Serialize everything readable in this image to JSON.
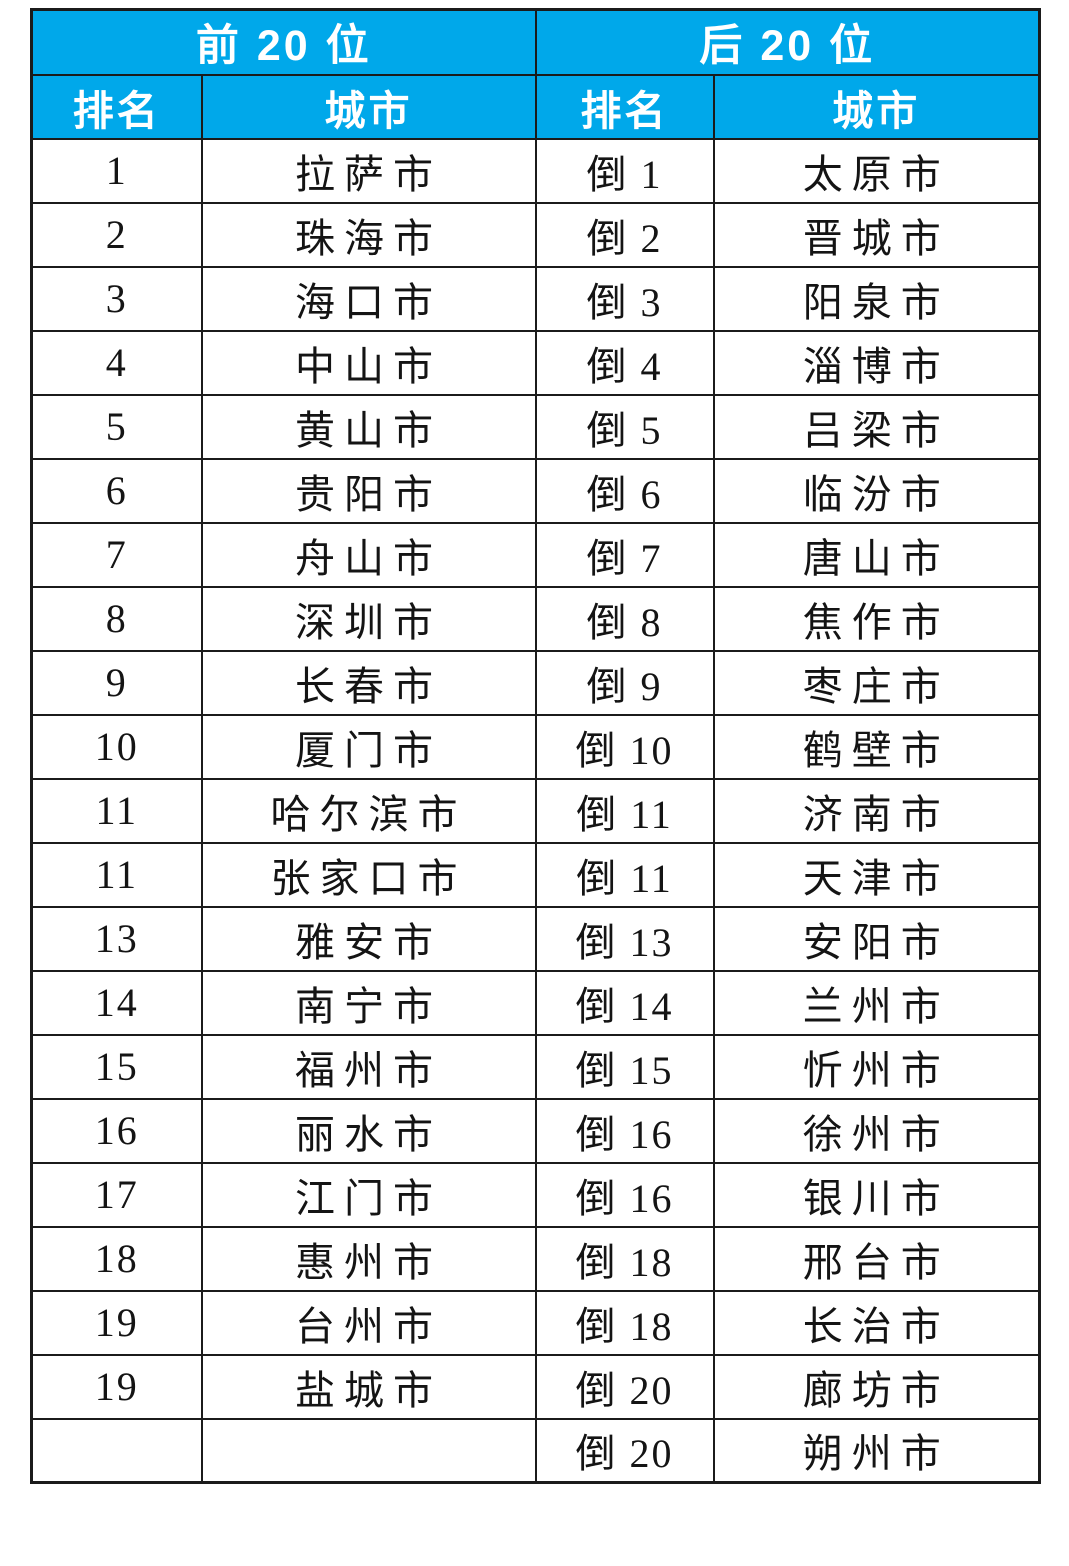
{
  "colors": {
    "header_bg": "#00A8EA",
    "header_text": "#FFFFFF",
    "body_text": "#141414",
    "border": "#1B1B1B",
    "page_bg": "#FFFFFF"
  },
  "chart_data": {
    "type": "table",
    "title": "",
    "column_groups": [
      "前 20 位",
      "后 20 位"
    ],
    "columns": [
      "排名",
      "城市",
      "排名",
      "城市"
    ],
    "rows": [
      [
        "1",
        "拉萨市",
        "倒 1",
        "太原市"
      ],
      [
        "2",
        "珠海市",
        "倒 2",
        "晋城市"
      ],
      [
        "3",
        "海口市",
        "倒 3",
        "阳泉市"
      ],
      [
        "4",
        "中山市",
        "倒 4",
        "淄博市"
      ],
      [
        "5",
        "黄山市",
        "倒 5",
        "吕梁市"
      ],
      [
        "6",
        "贵阳市",
        "倒 6",
        "临汾市"
      ],
      [
        "7",
        "舟山市",
        "倒 7",
        "唐山市"
      ],
      [
        "8",
        "深圳市",
        "倒 8",
        "焦作市"
      ],
      [
        "9",
        "长春市",
        "倒 9",
        "枣庄市"
      ],
      [
        "10",
        "厦门市",
        "倒 10",
        "鹤壁市"
      ],
      [
        "11",
        "哈尔滨市",
        "倒 11",
        "济南市"
      ],
      [
        "11",
        "张家口市",
        "倒 11",
        "天津市"
      ],
      [
        "13",
        "雅安市",
        "倒 13",
        "安阳市"
      ],
      [
        "14",
        "南宁市",
        "倒 14",
        "兰州市"
      ],
      [
        "15",
        "福州市",
        "倒 15",
        "忻州市"
      ],
      [
        "16",
        "丽水市",
        "倒 16",
        "徐州市"
      ],
      [
        "17",
        "江门市",
        "倒 16",
        "银川市"
      ],
      [
        "18",
        "惠州市",
        "倒 18",
        "邢台市"
      ],
      [
        "19",
        "台州市",
        "倒 18",
        "长治市"
      ],
      [
        "19",
        "盐城市",
        "倒 20",
        "廊坊市"
      ],
      [
        "",
        "",
        "倒 20",
        "朔州市"
      ]
    ]
  }
}
